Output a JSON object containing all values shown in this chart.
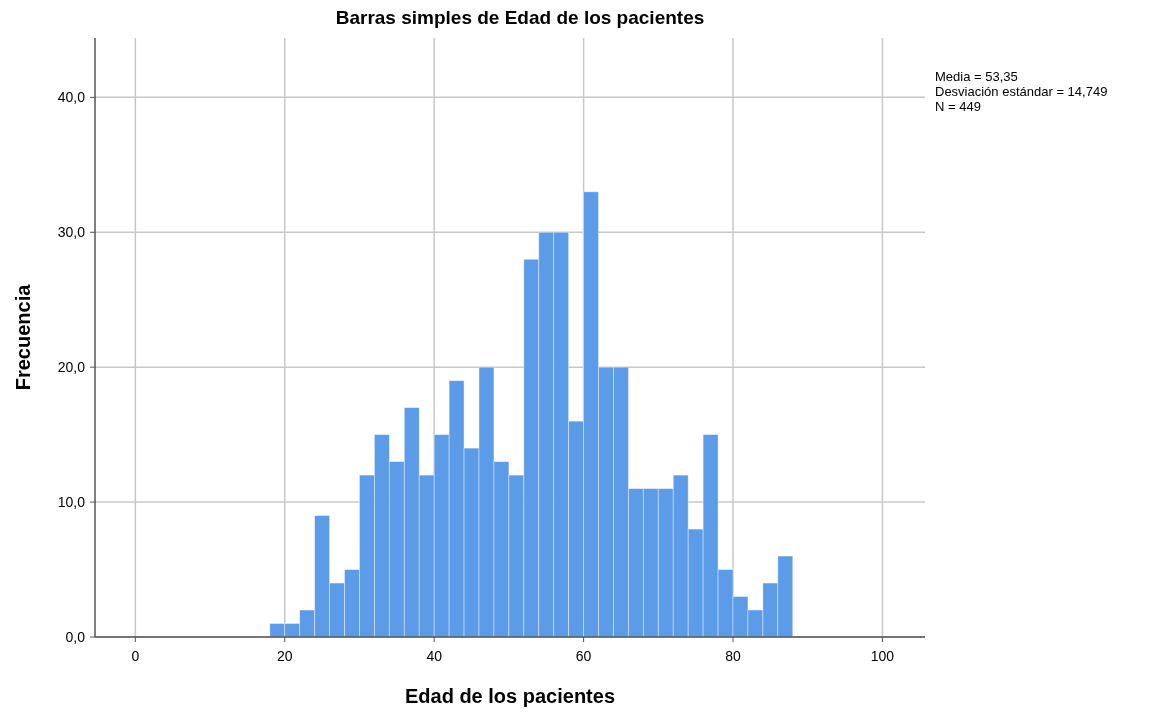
{
  "chart_data": {
    "type": "histogram",
    "title": "Barras simples de Edad de los pacientes",
    "xlabel": "Edad de los pacientes",
    "ylabel": "Frecuencia",
    "bins": [
      18,
      20,
      22,
      24,
      26,
      28,
      30,
      32,
      34,
      36,
      38,
      40,
      42,
      44,
      46,
      48,
      50,
      52,
      54,
      56,
      58,
      60,
      62,
      64,
      66,
      68,
      70,
      72,
      74,
      76,
      78,
      80,
      82,
      84,
      86,
      88
    ],
    "values": [
      1,
      1,
      2,
      9,
      4,
      5,
      12,
      15,
      13,
      17,
      12,
      15,
      19,
      14,
      20,
      13,
      12,
      28,
      30,
      30,
      16,
      33,
      20,
      20,
      11,
      11,
      11,
      12,
      8,
      15,
      5,
      3,
      2,
      4,
      6
    ],
    "color": "#5b9be8",
    "xlim": [
      -5.4,
      105.7
    ],
    "xticks": [
      0,
      20,
      40,
      60,
      80,
      100
    ],
    "ylim": [
      0,
      44.4
    ],
    "yticks": [
      {
        "value": 0,
        "label": "0,0"
      },
      {
        "value": 10,
        "label": "10,0"
      },
      {
        "value": 20,
        "label": "20,0"
      },
      {
        "value": 30,
        "label": "30,0"
      },
      {
        "value": 40,
        "label": "40,0"
      }
    ],
    "grid": true,
    "annotations": [
      "Media = 53,35",
      "Desviación estándar = 14,749",
      "N = 449"
    ]
  }
}
